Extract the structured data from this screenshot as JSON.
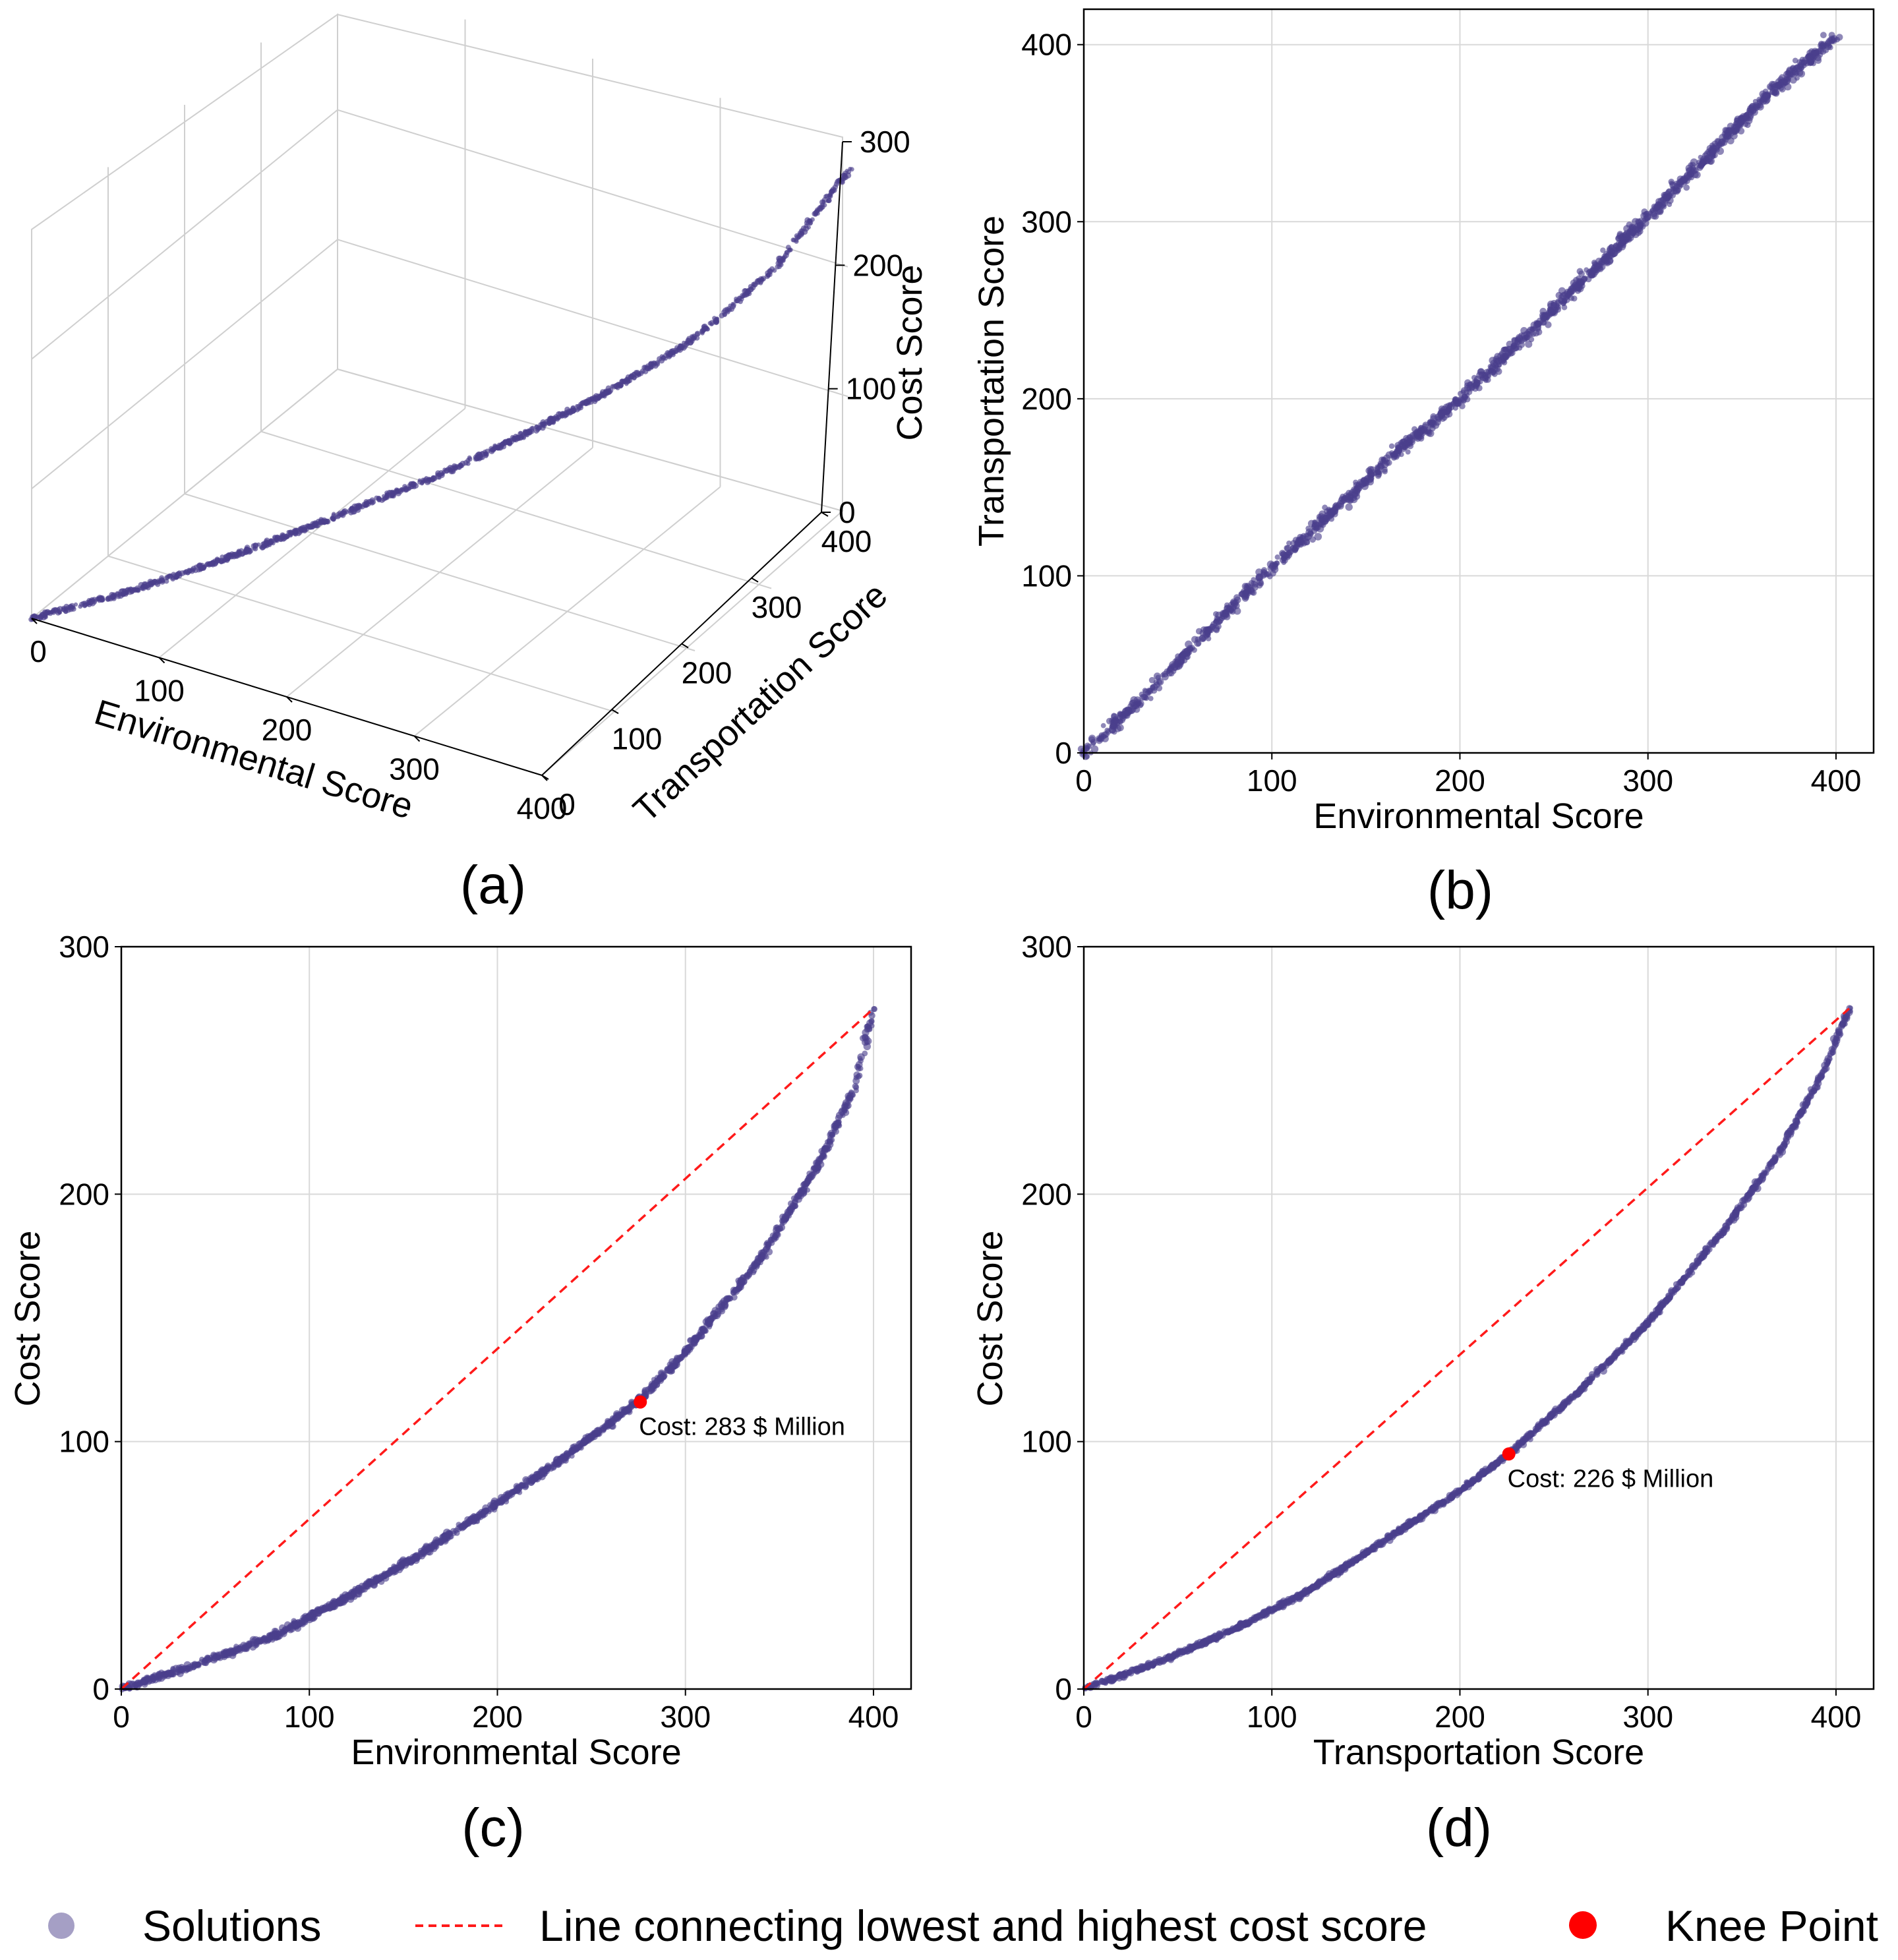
{
  "colors": {
    "solutions": "#4b3f8c",
    "line": "#ff1a1a",
    "knee": "#ff0000"
  },
  "chart_data": [
    {
      "id": "a",
      "type": "scatter3d",
      "panel_label": "(a)",
      "xlabel": "Environmental Score",
      "ylabel": "Transportation Score",
      "zlabel": "Cost Score",
      "xticks": [
        "0",
        "100",
        "200",
        "300",
        "400"
      ],
      "yticks": [
        "0",
        "100",
        "200",
        "300",
        "400"
      ],
      "zticks": [
        "0",
        "100",
        "200",
        "300"
      ],
      "xlim": [
        0,
        400
      ],
      "ylim": [
        0,
        400
      ],
      "zlim": [
        0,
        300
      ],
      "curve_env": [
        0,
        40,
        80,
        120,
        160,
        200,
        240,
        280,
        320,
        360,
        400
      ],
      "curve_trans": [
        0,
        40,
        85,
        125,
        165,
        200,
        240,
        285,
        325,
        370,
        405
      ],
      "curve_cost": [
        0,
        10,
        22,
        38,
        56,
        75,
        98,
        122,
        153,
        200,
        275
      ]
    },
    {
      "id": "b",
      "type": "scatter",
      "panel_label": "(b)",
      "xlabel": "Environmental Score",
      "ylabel": "Transportation Score",
      "xticks": [
        "0",
        "100",
        "200",
        "300",
        "400"
      ],
      "yticks": [
        "0",
        "100",
        "200",
        "300",
        "400"
      ],
      "xlim": [
        0,
        420
      ],
      "ylim": [
        0,
        420
      ],
      "x": [
        0,
        40,
        80,
        120,
        160,
        200,
        240,
        280,
        320,
        360,
        400
      ],
      "y": [
        0,
        40,
        84,
        124,
        164,
        200,
        240,
        282,
        324,
        368,
        405
      ]
    },
    {
      "id": "c",
      "type": "scatter",
      "panel_label": "(c)",
      "xlabel": "Environmental Score",
      "ylabel": "Cost Score",
      "xticks": [
        "0",
        "100",
        "200",
        "300",
        "400"
      ],
      "yticks": [
        "0",
        "100",
        "200",
        "300"
      ],
      "xlim": [
        0,
        420
      ],
      "ylim": [
        0,
        300
      ],
      "x": [
        0,
        40,
        80,
        120,
        160,
        200,
        240,
        276,
        300,
        340,
        370,
        390,
        400
      ],
      "y": [
        0,
        10,
        21,
        37,
        55,
        75,
        96,
        117,
        136,
        174,
        211,
        243,
        275
      ],
      "line": {
        "x": [
          0,
          400
        ],
        "y": [
          0,
          275
        ]
      },
      "knee": {
        "x": 276,
        "y": 116,
        "annotation": "Cost: 283 $ Million"
      }
    },
    {
      "id": "d",
      "type": "scatter",
      "panel_label": "(d)",
      "xlabel": "Transportation Score",
      "ylabel": "Cost Score",
      "xticks": [
        "0",
        "100",
        "200",
        "300",
        "400"
      ],
      "yticks": [
        "0",
        "100",
        "200",
        "300"
      ],
      "xlim": [
        0,
        420
      ],
      "ylim": [
        0,
        300
      ],
      "x": [
        0,
        40,
        80,
        120,
        160,
        200,
        226,
        260,
        300,
        340,
        370,
        395,
        407
      ],
      "y": [
        0,
        11,
        24,
        40,
        60,
        80,
        95,
        118,
        148,
        185,
        217,
        252,
        275
      ],
      "line": {
        "x": [
          0,
          407
        ],
        "y": [
          0,
          275
        ]
      },
      "knee": {
        "x": 226,
        "y": 95,
        "annotation": "Cost: 226 $ Million"
      }
    }
  ],
  "legend": {
    "items": [
      {
        "label": "Solutions",
        "icon": "solutions-marker-icon"
      },
      {
        "label": "Line connecting lowest and highest cost score",
        "icon": "dashed-line-icon"
      },
      {
        "label": "Knee Point",
        "icon": "knee-point-marker-icon"
      }
    ]
  }
}
